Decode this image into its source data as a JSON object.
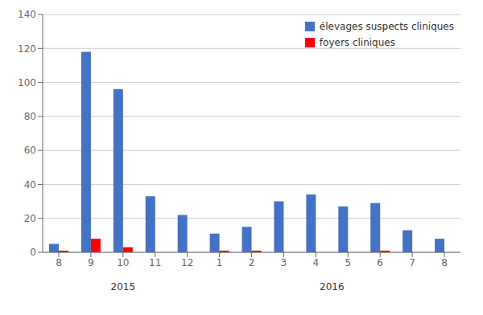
{
  "chart_data": {
    "type": "bar",
    "categories": [
      "8",
      "9",
      "10",
      "11",
      "12",
      "1",
      "2",
      "3",
      "4",
      "5",
      "6",
      "7",
      "8"
    ],
    "series": [
      {
        "name": "élevages suspects cliniques",
        "color": "#4472C4",
        "values": [
          5,
          118,
          96,
          33,
          22,
          11,
          15,
          30,
          34,
          27,
          29,
          13,
          8
        ]
      },
      {
        "name": "foyers cliniques",
        "color": "#FF0000",
        "values": [
          1,
          8,
          3,
          0,
          0,
          1,
          1,
          0,
          0,
          0,
          1,
          0,
          0
        ]
      }
    ],
    "ylim": [
      0,
      140
    ],
    "yticks": [
      0,
      20,
      40,
      60,
      80,
      100,
      120,
      140
    ],
    "grid": true,
    "legend": "upper right",
    "annotations": [
      {
        "text": "2015",
        "x": 2.0
      },
      {
        "text": "2016",
        "x": 8.5
      }
    ]
  }
}
